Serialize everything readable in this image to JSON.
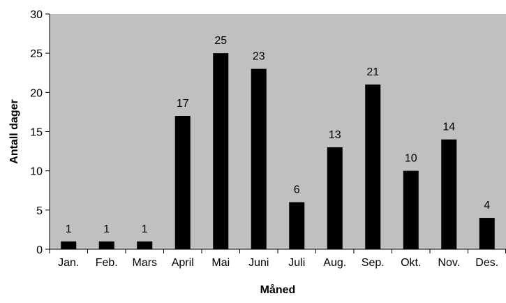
{
  "chart_data": {
    "type": "bar",
    "title": "",
    "xlabel": "Måned",
    "ylabel": "Antall dager",
    "categories": [
      "Jan.",
      "Feb.",
      "Mars",
      "April",
      "Mai",
      "Juni",
      "Juli",
      "Aug.",
      "Sep.",
      "Okt.",
      "Nov.",
      "Des."
    ],
    "values": [
      1,
      1,
      1,
      17,
      25,
      23,
      6,
      13,
      21,
      10,
      14,
      4
    ],
    "ylim": [
      0,
      30
    ],
    "yticks": [
      0,
      5,
      10,
      15,
      20,
      25,
      30
    ],
    "grid": false,
    "legend": "none",
    "colors": {
      "plot_background": "#c0c0c0",
      "bar": "#000000",
      "axis": "#000000"
    }
  }
}
